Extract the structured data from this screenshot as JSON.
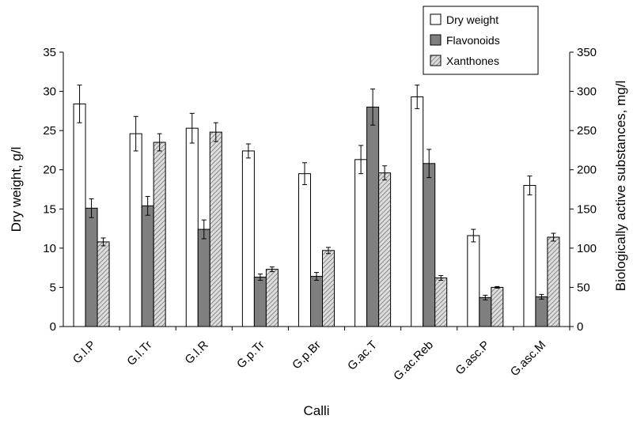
{
  "chart_data": {
    "type": "bar",
    "categories": [
      "G.l.P",
      "G.l.Tr",
      "G.l.R",
      "G.p.Tr",
      "G.p.Br",
      "G.ac.T",
      "G.ac.Reb",
      "G.asc.P",
      "G.asc.M"
    ],
    "series": [
      {
        "name": "Dry weight",
        "axis": "left",
        "fill": "#ffffff",
        "values": [
          28.4,
          24.6,
          25.3,
          22.4,
          19.5,
          21.3,
          29.3,
          11.6,
          18.0
        ],
        "errors": [
          2.4,
          2.2,
          1.9,
          0.9,
          1.4,
          1.8,
          1.5,
          0.8,
          1.2
        ]
      },
      {
        "name": "Flavonoids",
        "axis": "right",
        "fill": "#7f7f7f",
        "values": [
          151,
          154,
          124,
          63,
          64,
          280,
          208,
          37,
          38
        ],
        "errors": [
          12,
          12,
          12,
          4,
          5,
          23,
          18,
          3,
          3
        ]
      },
      {
        "name": "Xanthones",
        "axis": "right",
        "fill": "hatch",
        "values": [
          108,
          235,
          248,
          73,
          97,
          196,
          62,
          50,
          114
        ],
        "errors": [
          5,
          11,
          12,
          3,
          4,
          9,
          3,
          1,
          5
        ]
      }
    ],
    "xlabel": "Calli",
    "ylabel": "Dry weight, g/l",
    "y2label": "Biologically active substances, mg/l",
    "ylim": [
      0,
      35
    ],
    "y2lim": [
      0,
      350
    ],
    "yticks": [
      0,
      5,
      10,
      15,
      20,
      25,
      30,
      35
    ],
    "y2ticks": [
      0,
      50,
      100,
      150,
      200,
      250,
      300,
      350
    ],
    "grid": false,
    "legend_position": "top-right"
  }
}
